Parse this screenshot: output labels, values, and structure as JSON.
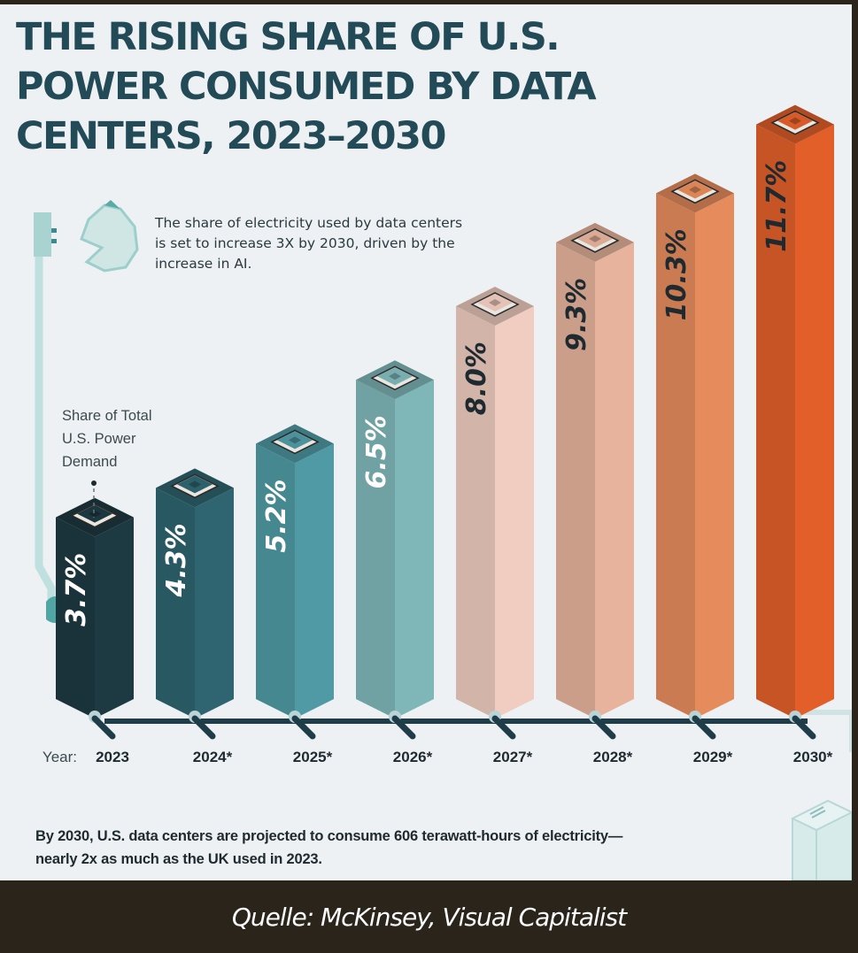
{
  "title": "THE RISING SHARE OF U.S.\nPOWER CONSUMED BY DATA\nCENTERS, 2023–2030",
  "subtitle": "The share of electricity used by data centers is set to increase 3X by 2030, driven by the increase in AI.",
  "y_axis_label": "Share of Total U.S. Power Demand",
  "footnote": "By 2030, U.S. data centers are projected to consume 606 terawatt-hours of electricity—nearly 2x as much as the UK used in 2023.",
  "source": "Quelle: McKinsey, Visual Capitalist",
  "icons": [
    "power-plug-icon",
    "microchip-icon",
    "server-rack-icon"
  ],
  "chart_data": {
    "type": "bar",
    "title": "The Rising Share of U.S. Power Consumed by Data Centers, 2023–2030",
    "xlabel": "Year",
    "ylabel": "Share of Total U.S. Power Demand",
    "x_prefix": "Year:",
    "categories": [
      "2023",
      "2024*",
      "2025*",
      "2026*",
      "2027*",
      "2028*",
      "2029*",
      "2030*"
    ],
    "values": [
      3.7,
      4.3,
      5.2,
      6.5,
      8.0,
      9.3,
      10.3,
      11.7
    ],
    "labels": [
      "3.7%",
      "4.3%",
      "5.2%",
      "6.5%",
      "8.0%",
      "9.3%",
      "10.3%",
      "11.7%"
    ],
    "unit": "%",
    "ylim": [
      0,
      12
    ],
    "grid": false,
    "legend": "none",
    "colors": [
      "#1d3a42",
      "#2e6570",
      "#4f9aa4",
      "#7fb7b9",
      "#f0cdc0",
      "#e7b39c",
      "#e68c5c",
      "#e25f2a"
    ],
    "label_colors": [
      "#ffffff",
      "#ffffff",
      "#ffffff",
      "#ffffff",
      "#1e2a30",
      "#1e2a30",
      "#1e2a30",
      "#1e2a30"
    ]
  }
}
